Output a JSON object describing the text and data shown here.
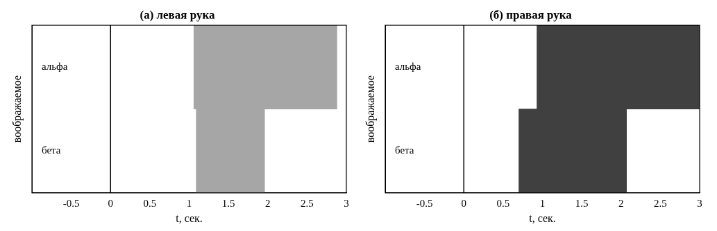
{
  "chart_data": [
    {
      "type": "bar",
      "title": "(а) левая рука",
      "xlabel": "t, сек.",
      "ylabel": "воображаемое",
      "orientation": "horizontal",
      "categories": [
        "альфа",
        "бета"
      ],
      "values": [
        1.82,
        0.87
      ],
      "base": [
        1.06,
        1.09
      ],
      "color": "#a6a6a6",
      "xlim": [
        -1,
        3
      ],
      "xticks": [
        -0.5,
        0,
        0.5,
        1,
        1.5,
        2,
        2.5,
        3
      ],
      "ref_lines": [
        {
          "axis": "x",
          "value": 0,
          "color": "#000000"
        }
      ],
      "grid": false,
      "legend": false
    },
    {
      "type": "bar",
      "title": "(б) правая рука",
      "xlabel": "t, сек.",
      "ylabel": "воображаемое",
      "orientation": "horizontal",
      "categories": [
        "альфа",
        "бета"
      ],
      "values": [
        2.07,
        1.37
      ],
      "base": [
        0.93,
        0.7
      ],
      "color": "#404040",
      "xlim": [
        -1,
        3
      ],
      "xticks": [
        -0.5,
        0,
        0.5,
        1,
        1.5,
        2,
        2.5,
        3
      ],
      "ref_lines": [
        {
          "axis": "x",
          "value": 0,
          "color": "#000000"
        }
      ],
      "grid": false,
      "legend": false
    }
  ]
}
